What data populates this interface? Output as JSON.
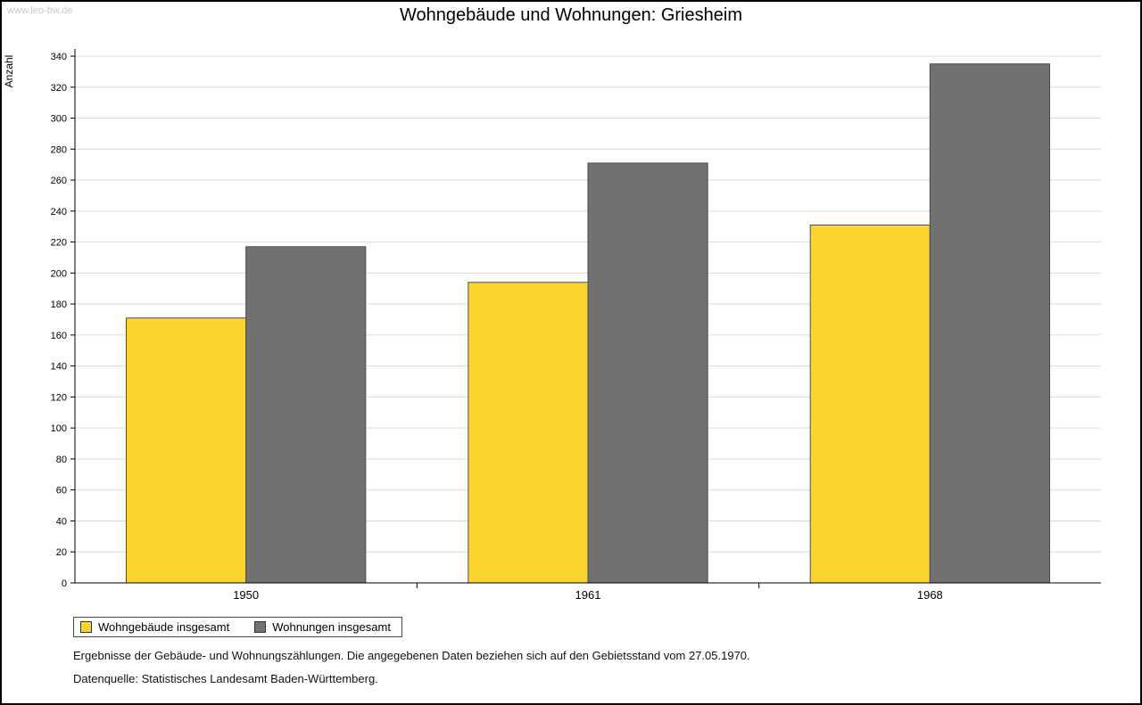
{
  "watermark": "www.leo-bw.de",
  "title": "Wohngebäude und Wohnungen: Griesheim",
  "footnotes": {
    "line1": "Ergebnisse der Gebäude- und Wohnungszählungen. Die angegebenen Daten beziehen sich auf den Gebietsstand vom 27.05.1970.",
    "line2": "Datenquelle: Statistisches Landesamt Baden-Württemberg."
  },
  "colors": {
    "series1": "#fcd430",
    "series2": "#717171",
    "gridline": "#d9d9d9",
    "axis": "#000000",
    "bar_border": "#4d4d4d"
  },
  "chart_data": {
    "type": "bar",
    "title": "Wohngebäude und Wohnungen: Griesheim",
    "categories": [
      "1950",
      "1961",
      "1968"
    ],
    "series": [
      {
        "name": "Wohngebäude insgesamt",
        "color": "#fcd430",
        "values": [
          171,
          194,
          231
        ]
      },
      {
        "name": "Wohnungen insgesamt",
        "color": "#717171",
        "values": [
          217,
          271,
          335
        ]
      }
    ],
    "xlabel": "",
    "ylabel": "Anzahl",
    "ylim": [
      0,
      340
    ],
    "ytick_step": 20,
    "grid": true,
    "legend_position": "bottom-left"
  }
}
